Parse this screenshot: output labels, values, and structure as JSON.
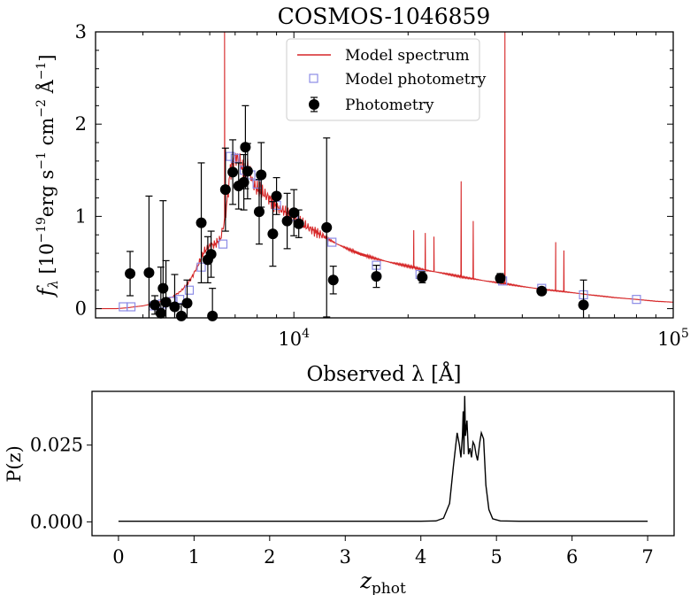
{
  "chart_data": [
    {
      "type": "line",
      "title": "COSMOS-1046859",
      "xlabel": "Observed λ [Å]",
      "ylabel": "f_λ [10^-19 erg s^-1 cm^-2 Å^-1]",
      "ylabel_parts": {
        "f": "f",
        "lambda": "λ",
        "pre": " [10",
        "exp1": "−19",
        "mid1": "erg s",
        "exp2": "−1",
        "mid2": " cm",
        "exp3": "−2",
        "mid3": " Å",
        "exp4": "−1",
        "end": "]"
      },
      "xscale": "log",
      "xlim": [
        3000,
        100000
      ],
      "ylim": [
        -0.1,
        3.0
      ],
      "x_ticks": [
        {
          "value": 10000,
          "label_base": "10",
          "label_exp": "4"
        },
        {
          "value": 100000,
          "label_base": "10",
          "label_exp": "5"
        }
      ],
      "y_ticks": [
        {
          "value": 0,
          "label": "0"
        },
        {
          "value": 1,
          "label": "1"
        },
        {
          "value": 2,
          "label": "2"
        },
        {
          "value": 3,
          "label": "3"
        }
      ],
      "legend": {
        "position": "top-center",
        "entries": [
          {
            "label": "Model spectrum",
            "color": "#d62728",
            "marker": "line"
          },
          {
            "label": "Model photometry",
            "color": "#8c8ce6",
            "marker": "open-square"
          },
          {
            "label": "Photometry",
            "color": "#000000",
            "marker": "filled-circle-errorbar"
          }
        ]
      },
      "series": [
        {
          "name": "Model spectrum",
          "color": "#d62728",
          "points": [
            [
              3000,
              0.0
            ],
            [
              3400,
              0.0
            ],
            [
              3650,
              0.01
            ],
            [
              3800,
              0.02
            ],
            [
              4000,
              0.03
            ],
            [
              4200,
              0.05
            ],
            [
              4400,
              0.07
            ],
            [
              4600,
              0.1
            ],
            [
              4800,
              0.13
            ],
            [
              5000,
              0.18
            ],
            [
              5200,
              0.25
            ],
            [
              5400,
              0.35
            ],
            [
              5600,
              0.48
            ],
            [
              5800,
              0.62
            ],
            [
              6000,
              0.68
            ],
            [
              6200,
              0.7
            ],
            [
              6400,
              0.75
            ],
            [
              6600,
              1.0
            ],
            [
              6800,
              1.5
            ],
            [
              7000,
              1.65
            ],
            [
              7200,
              1.6
            ],
            [
              7400,
              1.45
            ],
            [
              7600,
              1.55
            ],
            [
              7800,
              1.35
            ],
            [
              8000,
              1.3
            ],
            [
              8300,
              1.25
            ],
            [
              8600,
              1.2
            ],
            [
              9000,
              1.1
            ],
            [
              9500,
              1.05
            ],
            [
              10000,
              0.98
            ],
            [
              10500,
              0.92
            ],
            [
              11000,
              0.87
            ],
            [
              12000,
              0.78
            ],
            [
              13000,
              0.7
            ],
            [
              14000,
              0.64
            ],
            [
              15000,
              0.59
            ],
            [
              16500,
              0.54
            ],
            [
              18000,
              0.5
            ],
            [
              20000,
              0.46
            ],
            [
              22000,
              0.42
            ],
            [
              25000,
              0.38
            ],
            [
              28000,
              0.34
            ],
            [
              32000,
              0.3
            ],
            [
              36000,
              0.27
            ],
            [
              40000,
              0.24
            ],
            [
              45000,
              0.21
            ],
            [
              50000,
              0.19
            ],
            [
              55000,
              0.17
            ],
            [
              60000,
              0.15
            ],
            [
              70000,
              0.12
            ],
            [
              80000,
              0.1
            ],
            [
              90000,
              0.08
            ],
            [
              100000,
              0.07
            ]
          ],
          "emission_lines": [
            {
              "wavelength": 6565,
              "peak": 3.0
            },
            {
              "wavelength": 20700,
              "peak": 0.85
            },
            {
              "wavelength": 22200,
              "peak": 0.82
            },
            {
              "wavelength": 23400,
              "peak": 0.78
            },
            {
              "wavelength": 27600,
              "peak": 1.38
            },
            {
              "wavelength": 29700,
              "peak": 0.95
            },
            {
              "wavelength": 36000,
              "peak": 3.0
            },
            {
              "wavelength": 49000,
              "peak": 0.72
            },
            {
              "wavelength": 51500,
              "peak": 0.63
            }
          ]
        },
        {
          "name": "Model photometry",
          "color": "#8c8ce6",
          "points": [
            [
              3550,
              0.02
            ],
            [
              3720,
              0.02
            ],
            [
              4260,
              0.03
            ],
            [
              4500,
              0.05
            ],
            [
              4800,
              0.08
            ],
            [
              5000,
              0.1
            ],
            [
              5300,
              0.2
            ],
            [
              5700,
              0.45
            ],
            [
              6500,
              0.7
            ],
            [
              6800,
              1.65
            ],
            [
              7000,
              1.63
            ],
            [
              7400,
              1.5
            ],
            [
              7700,
              1.45
            ],
            [
              8000,
              1.35
            ],
            [
              9000,
              1.12
            ],
            [
              10000,
              1.0
            ],
            [
              12600,
              0.72
            ],
            [
              16500,
              0.47
            ],
            [
              21500,
              0.37
            ],
            [
              35500,
              0.3
            ],
            [
              45000,
              0.22
            ],
            [
              58000,
              0.15
            ],
            [
              80000,
              0.1
            ]
          ]
        },
        {
          "name": "Photometry",
          "color": "#000000",
          "points": [
            {
              "x": 3700,
              "y": 0.38,
              "err": 0.24
            },
            {
              "x": 4150,
              "y": 0.39,
              "err": 0.83
            },
            {
              "x": 4300,
              "y": 0.04,
              "err": 0.1
            },
            {
              "x": 4460,
              "y": -0.05,
              "err": 0.5
            },
            {
              "x": 4520,
              "y": 0.22,
              "err": 0.95
            },
            {
              "x": 4600,
              "y": 0.07,
              "err": 0.45
            },
            {
              "x": 4850,
              "y": 0.02,
              "err": 0.35
            },
            {
              "x": 5050,
              "y": -0.08,
              "err": 0.13
            },
            {
              "x": 5230,
              "y": 0.06,
              "err": 0.25
            },
            {
              "x": 5700,
              "y": 0.93,
              "err": 0.65
            },
            {
              "x": 5930,
              "y": 0.53,
              "err": 0.25
            },
            {
              "x": 6050,
              "y": 0.59,
              "err": 0.25
            },
            {
              "x": 6100,
              "y": -0.08,
              "err": 0.3
            },
            {
              "x": 6600,
              "y": 1.29,
              "err": 0.45
            },
            {
              "x": 6900,
              "y": 1.48,
              "err": 0.35
            },
            {
              "x": 7150,
              "y": 1.33,
              "err": 0.25
            },
            {
              "x": 7380,
              "y": 1.37,
              "err": 0.3
            },
            {
              "x": 7550,
              "y": 1.49,
              "err": 0.3
            },
            {
              "x": 7450,
              "y": 1.75,
              "err": 0.45
            },
            {
              "x": 8100,
              "y": 1.05,
              "err": 0.35
            },
            {
              "x": 8200,
              "y": 1.45,
              "err": 0.35
            },
            {
              "x": 8800,
              "y": 0.81,
              "err": 0.35
            },
            {
              "x": 9000,
              "y": 1.22,
              "err": 0.2
            },
            {
              "x": 9600,
              "y": 0.95,
              "err": 0.3
            },
            {
              "x": 10000,
              "y": 1.04,
              "err": 0.25
            },
            {
              "x": 10300,
              "y": 0.92,
              "err": 0.15
            },
            {
              "x": 12200,
              "y": 0.88,
              "err": 0.97
            },
            {
              "x": 12700,
              "y": 0.31,
              "err": 0.15
            },
            {
              "x": 16500,
              "y": 0.35,
              "err": 0.12
            },
            {
              "x": 21800,
              "y": 0.34,
              "err": 0.06
            },
            {
              "x": 35000,
              "y": 0.33,
              "err": 0.05
            },
            {
              "x": 45000,
              "y": 0.19,
              "err": 0.04
            },
            {
              "x": 58000,
              "y": 0.04,
              "err": 0.27
            }
          ]
        }
      ]
    },
    {
      "type": "line",
      "title": "",
      "xlabel": "z_phot",
      "xlabel_parts": {
        "base": "z",
        "sub": "phot"
      },
      "ylabel": "P(z)",
      "xlim": [
        -0.35,
        7.35
      ],
      "ylim": [
        -0.0045,
        0.0425
      ],
      "x_ticks": [
        0,
        1,
        2,
        3,
        4,
        5,
        6,
        7
      ],
      "y_ticks": [
        {
          "value": 0.0,
          "label": "0.000"
        },
        {
          "value": 0.025,
          "label": "0.025"
        }
      ],
      "series": [
        {
          "name": "P(z)",
          "color": "#000000",
          "points": [
            [
              0,
              0.0002
            ],
            [
              4.0,
              0.0002
            ],
            [
              4.2,
              0.0003
            ],
            [
              4.3,
              0.0012
            ],
            [
              4.38,
              0.006
            ],
            [
              4.43,
              0.018
            ],
            [
              4.48,
              0.029
            ],
            [
              4.51,
              0.025
            ],
            [
              4.53,
              0.021
            ],
            [
              4.55,
              0.028
            ],
            [
              4.56,
              0.036
            ],
            [
              4.57,
              0.022
            ],
            [
              4.58,
              0.041
            ],
            [
              4.59,
              0.028
            ],
            [
              4.61,
              0.033
            ],
            [
              4.63,
              0.022
            ],
            [
              4.65,
              0.024
            ],
            [
              4.67,
              0.021
            ],
            [
              4.69,
              0.026
            ],
            [
              4.71,
              0.025
            ],
            [
              4.73,
              0.022
            ],
            [
              4.75,
              0.02
            ],
            [
              4.78,
              0.026
            ],
            [
              4.8,
              0.029
            ],
            [
              4.83,
              0.027
            ],
            [
              4.86,
              0.012
            ],
            [
              4.9,
              0.004
            ],
            [
              4.95,
              0.001
            ],
            [
              5.05,
              0.0003
            ],
            [
              5.3,
              0.0002
            ],
            [
              7.0,
              0.0002
            ]
          ]
        }
      ]
    }
  ]
}
